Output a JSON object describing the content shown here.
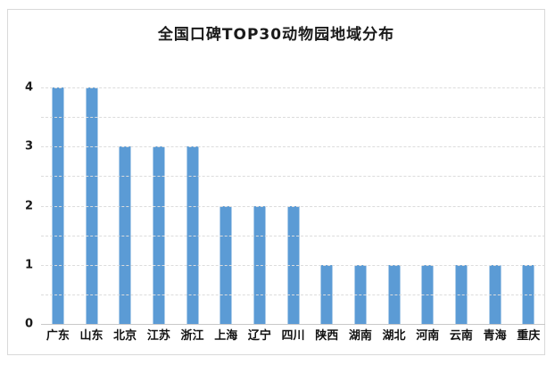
{
  "chart_data": {
    "type": "bar",
    "title": "全国口碑TOP30动物园地域分布",
    "categories": [
      "广东",
      "山东",
      "北京",
      "江苏",
      "浙江",
      "上海",
      "辽宁",
      "四川",
      "陕西",
      "湖南",
      "湖北",
      "河南",
      "云南",
      "青海",
      "重庆"
    ],
    "values": [
      4,
      4,
      3,
      3,
      3,
      2,
      2,
      2,
      1,
      1,
      1,
      1,
      1,
      1,
      1
    ],
    "xlabel": "",
    "ylabel": "",
    "ylim": [
      0,
      4
    ],
    "yticks": [
      0,
      1,
      2,
      3,
      4
    ],
    "grid": true,
    "gridline_step": 0.5,
    "legend_position": "none",
    "bar_color": "#5b9bd5",
    "gridline_color": "#dcdcdc",
    "axis_line_color": "#c9c9c9",
    "frame_border_color": "#d9d9d9",
    "title_color": "#1a1a1a",
    "label_color": "#111111",
    "background_color": "#ffffff"
  }
}
